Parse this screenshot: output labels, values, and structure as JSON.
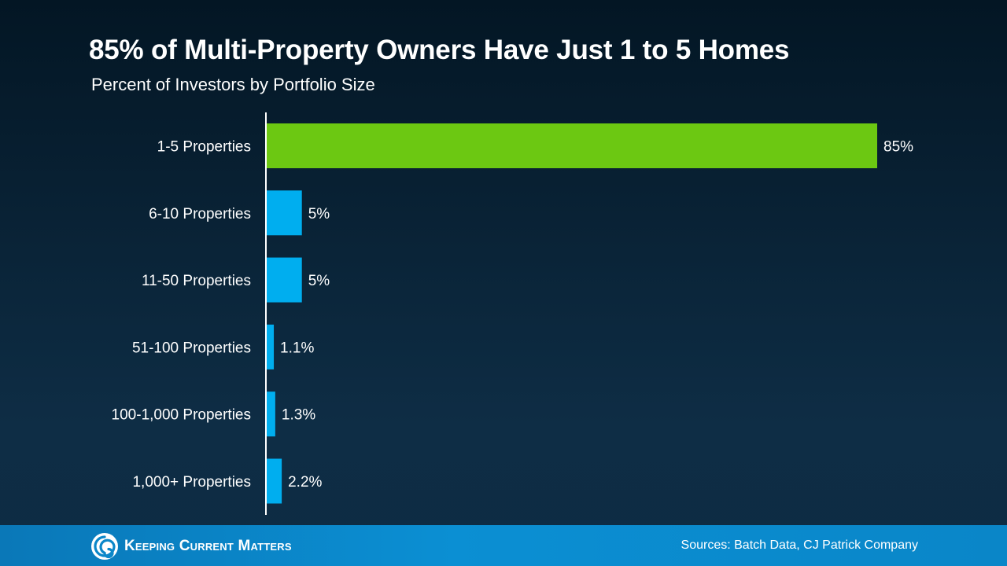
{
  "header": {
    "title": "85% of Multi-Property Owners Have Just 1 to 5 Homes",
    "subtitle": "Percent of Investors by Portfolio Size"
  },
  "chart_data": {
    "type": "bar",
    "orientation": "horizontal",
    "title": "85% of Multi-Property Owners Have Just 1 to 5 Homes",
    "subtitle": "Percent of Investors by Portfolio Size",
    "categories": [
      "1-5 Properties",
      "6-10 Properties",
      "11-50 Properties",
      "51-100 Properties",
      "100-1,000 Properties",
      "1,000+ Properties"
    ],
    "values": [
      85,
      5,
      5,
      1.1,
      1.3,
      2.2
    ],
    "data_labels": [
      "85%",
      "5%",
      "5%",
      "1.1%",
      "1.3%",
      "2.2%"
    ],
    "unit": "%",
    "xlim": [
      0,
      85
    ],
    "grid": false,
    "legend": "none",
    "colors": {
      "highlight": "#6cc812",
      "default": "#00aeef",
      "axis": "#ffffff",
      "label": "#ffffff"
    }
  },
  "footer": {
    "brand": "Keeping Current Matters",
    "sources": "Sources: Batch Data, CJ Patrick Company",
    "logo_icon": "kcm-swirl-logo-icon"
  }
}
